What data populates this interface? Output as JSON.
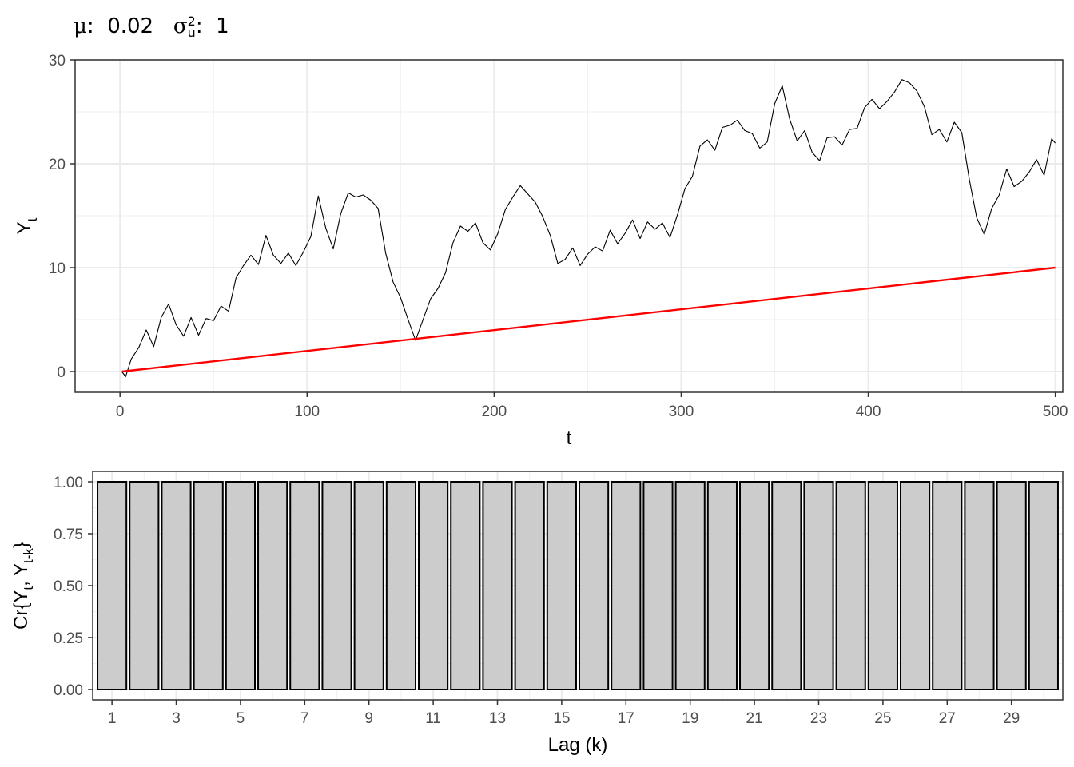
{
  "title": {
    "mu_symbol": "μ",
    "mu_value": "0.02",
    "sigma_symbol": "σ",
    "sigma_sup": "2",
    "sigma_sub": "u",
    "sigma_value": "1"
  },
  "chart_data": [
    {
      "type": "line",
      "xlabel": "t",
      "ylabel": "Y",
      "ylabel_sub": "t",
      "xlim": [
        -24,
        504
      ],
      "ylim": [
        -2,
        30
      ],
      "x_ticks": [
        0,
        100,
        200,
        300,
        400,
        500
      ],
      "y_ticks": [
        0,
        10,
        20,
        30
      ],
      "grid": true,
      "series": [
        {
          "role": "random walk path",
          "color": "#000000",
          "x": [
            1,
            3,
            6,
            10,
            14,
            18,
            22,
            26,
            30,
            34,
            38,
            42,
            46,
            50,
            54,
            58,
            62,
            66,
            70,
            74,
            78,
            82,
            86,
            90,
            94,
            98,
            102,
            106,
            110,
            114,
            118,
            122,
            126,
            130,
            134,
            138,
            142,
            146,
            150,
            154,
            158,
            162,
            166,
            170,
            174,
            178,
            182,
            186,
            190,
            194,
            198,
            202,
            206,
            210,
            214,
            218,
            222,
            226,
            230,
            234,
            238,
            242,
            246,
            250,
            254,
            258,
            262,
            266,
            270,
            274,
            278,
            282,
            286,
            290,
            294,
            298,
            302,
            306,
            310,
            314,
            318,
            322,
            326,
            330,
            334,
            338,
            342,
            346,
            350,
            354,
            358,
            362,
            366,
            370,
            374,
            378,
            382,
            386,
            390,
            394,
            398,
            402,
            406,
            410,
            414,
            418,
            422,
            426,
            430,
            434,
            438,
            442,
            446,
            450,
            454,
            458,
            462,
            466,
            470,
            474,
            478,
            482,
            486,
            490,
            494,
            498,
            500
          ],
          "y": [
            0,
            -0.5,
            1.2,
            2.3,
            4.0,
            2.4,
            5.2,
            6.5,
            4.5,
            3.4,
            5.2,
            3.5,
            5.1,
            4.9,
            6.3,
            5.8,
            9.0,
            10.2,
            11.2,
            10.3,
            13.1,
            11.2,
            10.4,
            11.4,
            10.2,
            11.5,
            13.0,
            16.9,
            13.8,
            11.8,
            15.2,
            17.2,
            16.8,
            17.0,
            16.5,
            15.7,
            11.4,
            8.6,
            7.1,
            5.0,
            3.0,
            5.0,
            7.0,
            8.0,
            9.5,
            12.4,
            14.0,
            13.5,
            14.3,
            12.4,
            11.7,
            13.3,
            15.6,
            16.8,
            17.9,
            17.1,
            16.3,
            14.9,
            13.1,
            10.4,
            10.8,
            11.9,
            10.2,
            11.3,
            12.0,
            11.6,
            13.6,
            12.3,
            13.3,
            14.6,
            12.8,
            14.4,
            13.7,
            14.3,
            12.9,
            15.1,
            17.6,
            18.8,
            21.7,
            22.3,
            21.3,
            23.5,
            23.7,
            24.2,
            23.2,
            22.9,
            21.5,
            22.1,
            25.8,
            27.5,
            24.3,
            22.2,
            23.2,
            21.1,
            20.3,
            22.5,
            22.6,
            21.8,
            23.3,
            23.4,
            25.4,
            26.2,
            25.3,
            26.0,
            26.9,
            28.1,
            27.8,
            27.0,
            25.5,
            22.8,
            23.3,
            22.1,
            24.0,
            23.0,
            18.5,
            14.8,
            13.2,
            15.7,
            17.0,
            19.5,
            17.8,
            18.3,
            19.2,
            20.4,
            18.9,
            22.4,
            22.0
          ]
        },
        {
          "role": "drift line",
          "color": "#ff0000",
          "x": [
            1,
            500
          ],
          "y": [
            0,
            10
          ]
        }
      ]
    },
    {
      "type": "bar",
      "xlabel": "Lag (k)",
      "ylabel": "Cr{Y",
      "ylabel_sub1": "t",
      "ylabel_mid": ", Y",
      "ylabel_sub2": "t-k",
      "ylabel_end": "}",
      "ylim": [
        -0.05,
        1.05
      ],
      "y_ticks": [
        0.0,
        0.25,
        0.5,
        0.75,
        1.0
      ],
      "y_tick_labels": [
        "0.00",
        "0.25",
        "0.50",
        "0.75",
        "1.00"
      ],
      "x_tick_labels": [
        "1",
        "3",
        "5",
        "7",
        "9",
        "11",
        "13",
        "15",
        "17",
        "19",
        "21",
        "23",
        "25",
        "27",
        "29"
      ],
      "grid": true,
      "bar_fill": "#cccccc",
      "bar_stroke": "#000000",
      "categories": [
        1,
        2,
        3,
        4,
        5,
        6,
        7,
        8,
        9,
        10,
        11,
        12,
        13,
        14,
        15,
        16,
        17,
        18,
        19,
        20,
        21,
        22,
        23,
        24,
        25,
        26,
        27,
        28,
        29,
        30
      ],
      "values": [
        1,
        1,
        1,
        1,
        1,
        1,
        1,
        1,
        1,
        1,
        1,
        1,
        1,
        1,
        1,
        1,
        1,
        1,
        1,
        1,
        1,
        1,
        1,
        1,
        1,
        1,
        1,
        1,
        1,
        1
      ]
    }
  ]
}
